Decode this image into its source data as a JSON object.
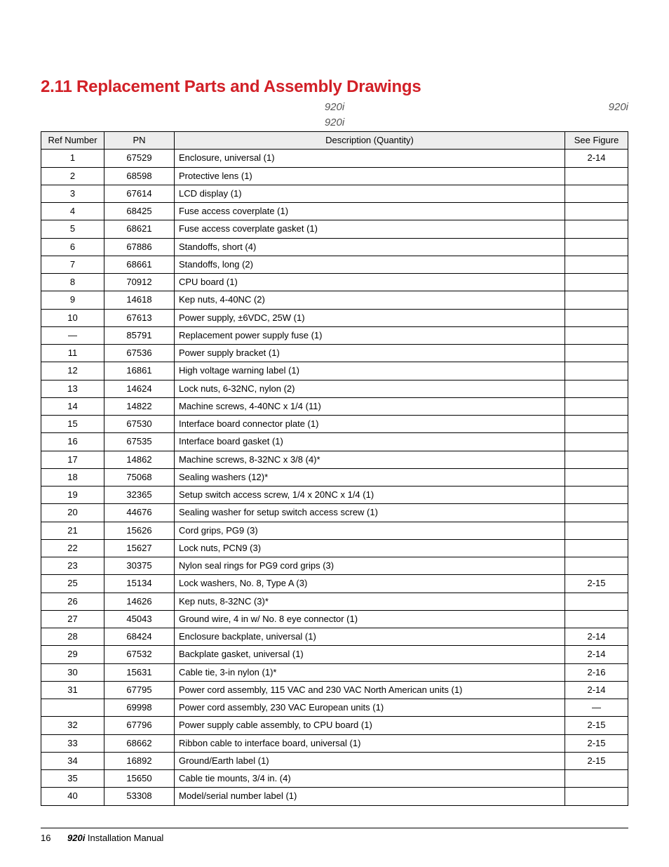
{
  "heading": "2.11  Replacement Parts and Assembly Drawings",
  "subtitle_center": "920i",
  "subtitle_right": "920i",
  "caption": "920i",
  "columns": {
    "ref": "Ref Number",
    "pn": "PN",
    "desc": "Description (Quantity)",
    "fig": "See Figure"
  },
  "rows": [
    {
      "ref": "1",
      "pn": "67529",
      "desc": "Enclosure, universal (1)",
      "fig": "2-14",
      "merge": "top"
    },
    {
      "ref": "2",
      "pn": "68598",
      "desc": "Protective lens (1)",
      "fig": "",
      "merge": "mid"
    },
    {
      "ref": "3",
      "pn": "67614",
      "desc": "LCD display (1)",
      "fig": "",
      "merge": "mid"
    },
    {
      "ref": "4",
      "pn": "68425",
      "desc": "Fuse access coverplate (1)",
      "fig": "",
      "merge": "mid"
    },
    {
      "ref": "5",
      "pn": "68621",
      "desc": "Fuse access coverplate gasket (1)",
      "fig": "",
      "merge": "mid"
    },
    {
      "ref": "6",
      "pn": "67886",
      "desc": "Standoffs, short (4)",
      "fig": "",
      "merge": "mid"
    },
    {
      "ref": "7",
      "pn": "68661",
      "desc": "Standoffs, long (2)",
      "fig": "",
      "merge": "mid"
    },
    {
      "ref": "8",
      "pn": "70912",
      "desc": "CPU board (1)",
      "fig": "",
      "merge": "mid"
    },
    {
      "ref": "9",
      "pn": "14618",
      "desc": "Kep nuts, 4-40NC (2)",
      "fig": "",
      "merge": "mid"
    },
    {
      "ref": "10",
      "pn": "67613",
      "desc": "Power supply, ±6VDC, 25W (1)",
      "fig": "",
      "merge": "mid"
    },
    {
      "ref": "—",
      "pn": "85791",
      "desc": "Replacement power supply fuse (1)",
      "fig": "",
      "merge": "mid"
    },
    {
      "ref": "11",
      "pn": "67536",
      "desc": "Power supply bracket (1)",
      "fig": "",
      "merge": "mid"
    },
    {
      "ref": "12",
      "pn": "16861",
      "desc": "High voltage warning label (1)",
      "fig": "",
      "merge": "mid"
    },
    {
      "ref": "13",
      "pn": "14624",
      "desc": "Lock nuts, 6-32NC, nylon (2)",
      "fig": "",
      "merge": "mid"
    },
    {
      "ref": "14",
      "pn": "14822",
      "desc": "Machine screws, 4-40NC x 1/4 (11)",
      "fig": "",
      "merge": "mid"
    },
    {
      "ref": "15",
      "pn": "67530",
      "desc": "Interface board connector plate (1)",
      "fig": "",
      "merge": "mid"
    },
    {
      "ref": "16",
      "pn": "67535",
      "desc": "Interface board gasket (1)",
      "fig": "",
      "merge": "mid"
    },
    {
      "ref": "17",
      "pn": "14862",
      "desc": "Machine screws, 8-32NC x 3/8 (4)*",
      "fig": "",
      "merge": "mid"
    },
    {
      "ref": "18",
      "pn": "75068",
      "desc": "Sealing washers (12)*",
      "fig": "",
      "merge": "mid"
    },
    {
      "ref": "19",
      "pn": "32365",
      "desc": "Setup switch access screw, 1/4 x 20NC x 1/4 (1)",
      "fig": "",
      "merge": "mid"
    },
    {
      "ref": "20",
      "pn": "44676",
      "desc": "Sealing washer for setup switch access screw (1)",
      "fig": "",
      "merge": "mid"
    },
    {
      "ref": "21",
      "pn": "15626",
      "desc": "Cord grips, PG9 (3)",
      "fig": "",
      "merge": "mid"
    },
    {
      "ref": "22",
      "pn": "15627",
      "desc": "Lock nuts, PCN9 (3)",
      "fig": "",
      "merge": "mid"
    },
    {
      "ref": "23",
      "pn": "30375",
      "desc": "Nylon seal rings for PG9 cord grips (3)",
      "fig": "",
      "merge": "bot"
    },
    {
      "ref": "25",
      "pn": "15134",
      "desc": "Lock washers, No. 8, Type A (3)",
      "fig": "2-15",
      "merge": "top"
    },
    {
      "ref": "26",
      "pn": "14626",
      "desc": "Kep nuts, 8-32NC (3)*",
      "fig": "",
      "merge": "mid"
    },
    {
      "ref": "27",
      "pn": "45043",
      "desc": "Ground wire, 4 in w/ No. 8 eye connector (1)",
      "fig": "",
      "merge": "bot"
    },
    {
      "ref": "28",
      "pn": "68424",
      "desc": "Enclosure backplate, universal (1)",
      "fig": "2-14",
      "merge": ""
    },
    {
      "ref": "29",
      "pn": "67532",
      "desc": "Backplate gasket, universal (1)",
      "fig": "2-14",
      "merge": ""
    },
    {
      "ref": "30",
      "pn": "15631",
      "desc": "Cable tie, 3-in nylon (1)*",
      "fig": "2-16",
      "merge": ""
    },
    {
      "ref": "31",
      "pn": "67795",
      "desc": "Power cord assembly, 115 VAC and 230 VAC North American units (1)",
      "fig": "2-14",
      "merge": ""
    },
    {
      "ref": "",
      "pn": "69998",
      "desc": "Power cord assembly, 230 VAC European units (1)",
      "fig": "—",
      "merge": ""
    },
    {
      "ref": "32",
      "pn": "67796",
      "desc": "Power supply cable assembly, to CPU board (1)",
      "fig": "2-15",
      "merge": ""
    },
    {
      "ref": "33",
      "pn": "68662",
      "desc": "Ribbon cable to interface board, universal (1)",
      "fig": "2-15",
      "merge": ""
    },
    {
      "ref": "34",
      "pn": "16892",
      "desc": "Ground/Earth label (1)",
      "fig": "2-15",
      "merge": "top"
    },
    {
      "ref": "35",
      "pn": "15650",
      "desc": "Cable tie mounts, 3/4 in. (4)",
      "fig": "",
      "merge": "mid"
    },
    {
      "ref": "40",
      "pn": "53308",
      "desc": "Model/serial number label (1)",
      "fig": "",
      "merge": "bot"
    }
  ],
  "footer": {
    "page": "16",
    "model": "920i",
    "doc": " Installation Manual"
  }
}
